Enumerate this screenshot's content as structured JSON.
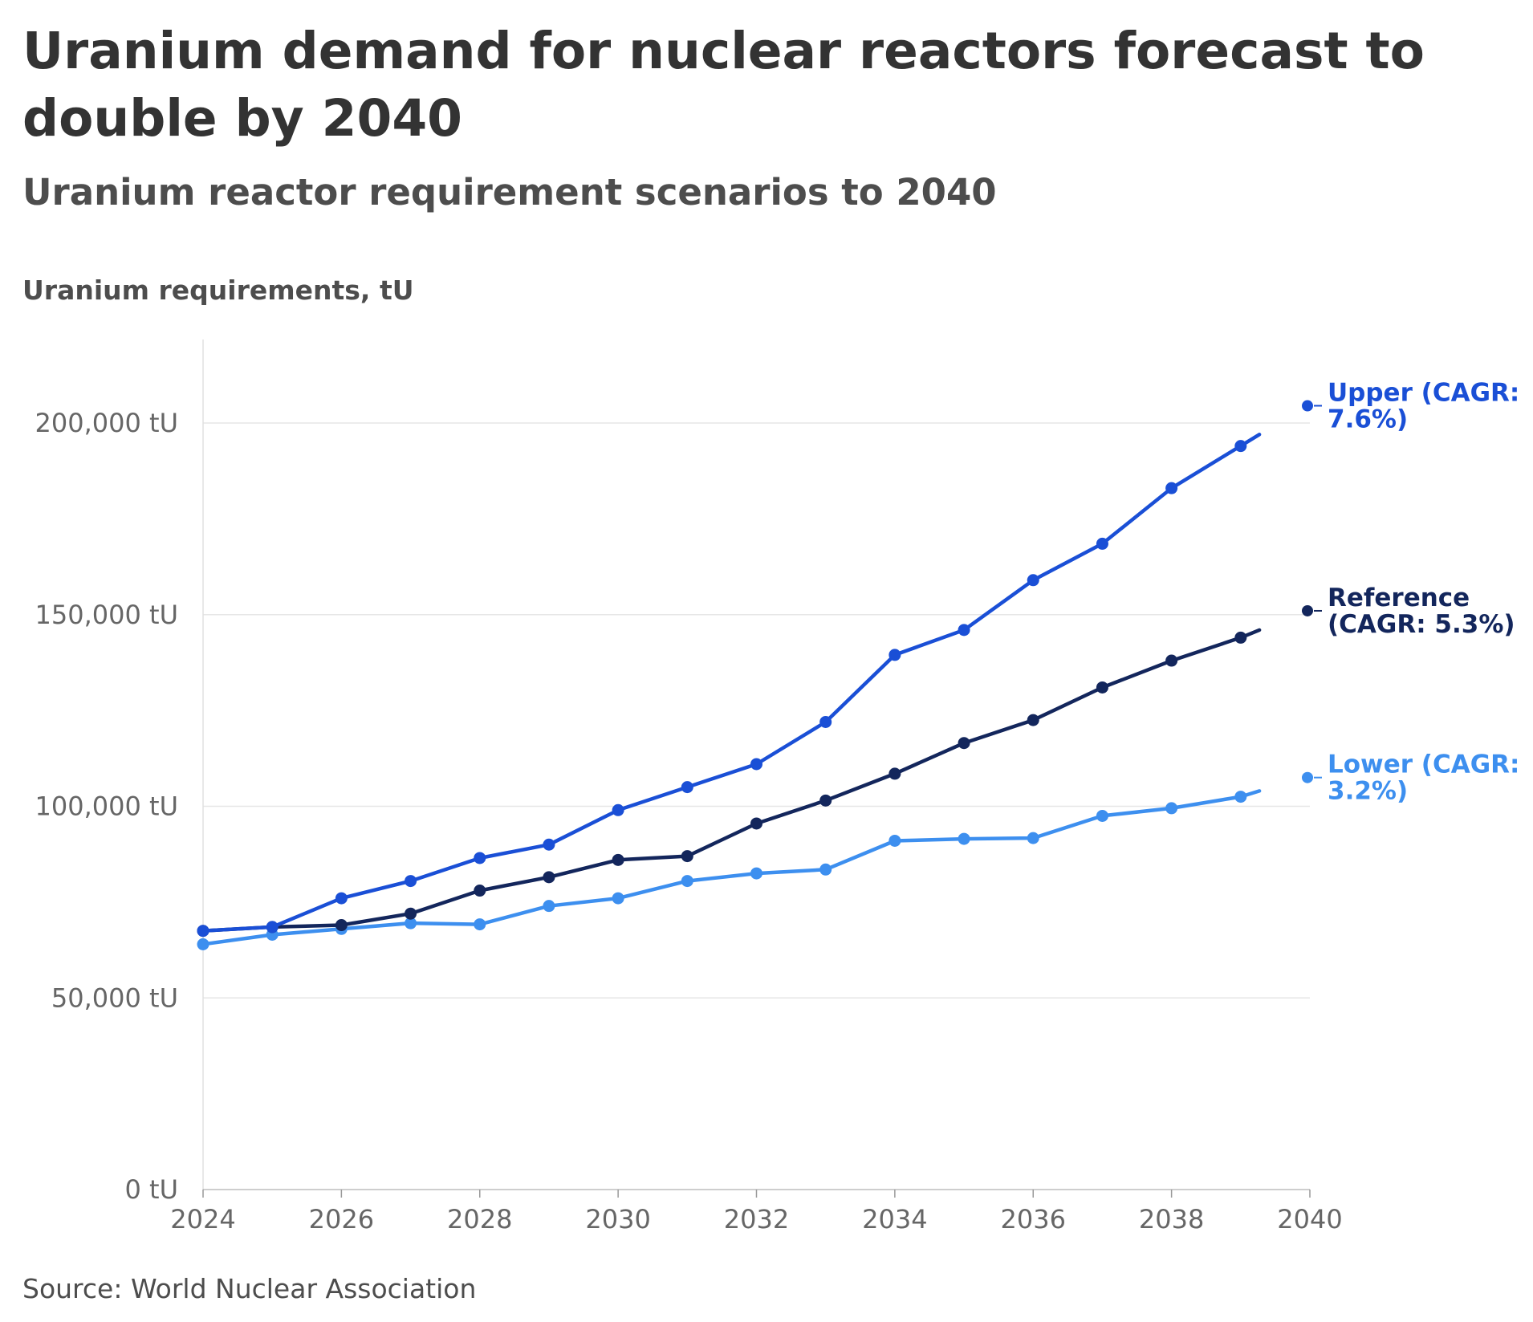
{
  "header": {
    "title": "Uranium demand for nuclear reactors forecast to double by 2040",
    "subtitle": "Uranium reactor requirement scenarios to 2040"
  },
  "footer": {
    "source": "Source: World Nuclear Association"
  },
  "chart_data": {
    "type": "line",
    "ylabel": "Uranium requirements, tU",
    "xlabel": "",
    "xlim": [
      2024,
      2040
    ],
    "ylim": [
      0,
      220000
    ],
    "x_ticks": [
      2024,
      2026,
      2028,
      2030,
      2032,
      2034,
      2036,
      2038,
      2040
    ],
    "x_tick_labels": [
      "2024",
      "2026",
      "2028",
      "2030",
      "2032",
      "2034",
      "2036",
      "2038",
      "2040"
    ],
    "y_ticks": [
      0,
      50000,
      100000,
      150000,
      200000
    ],
    "y_tick_labels": [
      "0 tU",
      "50,000 tU",
      "100,000 tU",
      "150,000 tU",
      "200,000 tU"
    ],
    "grid": true,
    "legend": "direct labels at right end of lines",
    "x": [
      2024,
      2025,
      2026,
      2027,
      2028,
      2029,
      2030,
      2031,
      2032,
      2033,
      2034,
      2035,
      2036,
      2037,
      2038,
      2039
    ],
    "series": [
      {
        "name": "Upper (CAGR: 7.6%)",
        "label_lines": [
          "Upper (CAGR:",
          "7.6%)"
        ],
        "color": "#1a4fd6",
        "values": [
          67500,
          68500,
          76000,
          80500,
          86500,
          90000,
          99000,
          105000,
          111000,
          122000,
          139500,
          146000,
          159000,
          168500,
          183000,
          194000
        ],
        "end_value": 197000,
        "label_value": 204500
      },
      {
        "name": "Reference (CAGR: 5.3%)",
        "label_lines": [
          "Reference",
          "(CAGR: 5.3%)"
        ],
        "color": "#13265c",
        "values": [
          67500,
          68500,
          69000,
          72000,
          78000,
          81500,
          86000,
          87000,
          95500,
          101500,
          108500,
          116500,
          122500,
          131000,
          138000,
          144000
        ],
        "end_value": 146000,
        "label_value": 151000
      },
      {
        "name": "Lower (CAGR: 3.2%)",
        "label_lines": [
          "Lower (CAGR:",
          "3.2%)"
        ],
        "color": "#3d8fef",
        "values": [
          64000,
          66500,
          68000,
          69500,
          69200,
          74000,
          76000,
          80500,
          82500,
          83500,
          91000,
          91500,
          91700,
          97500,
          99500,
          102500
        ],
        "end_value": 104000,
        "label_value": 107500
      }
    ]
  }
}
